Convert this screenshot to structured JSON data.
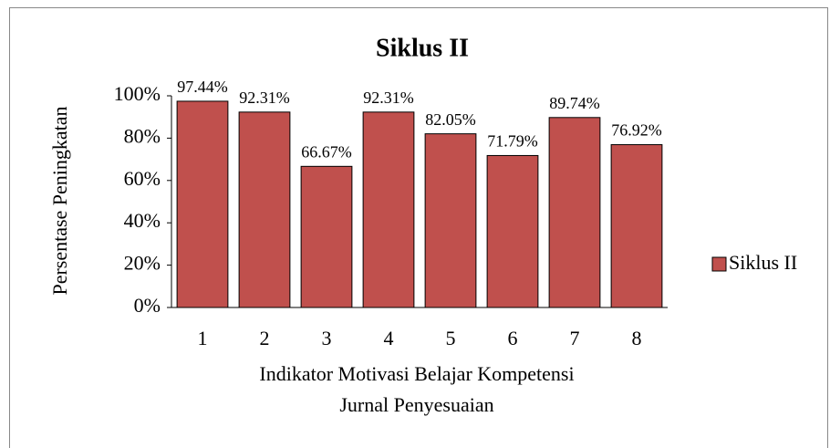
{
  "chart_data": {
    "type": "bar",
    "title": "Siklus II",
    "categories": [
      "1",
      "2",
      "3",
      "4",
      "5",
      "6",
      "7",
      "8"
    ],
    "series": [
      {
        "name": "Siklus II",
        "color": "#c0504d",
        "values": [
          97.44,
          92.31,
          66.67,
          92.31,
          82.05,
          71.79,
          89.74,
          76.92
        ],
        "value_labels": [
          "97.44%",
          "92.31%",
          "66.67%",
          "92.31%",
          "82.05%",
          "71.79%",
          "89.74%",
          "76.92%"
        ]
      }
    ],
    "ylim": [
      0,
      100
    ],
    "yticks": [
      {
        "value": 0,
        "label": "0%"
      },
      {
        "value": 20,
        "label": "20%"
      },
      {
        "value": 40,
        "label": "40%"
      },
      {
        "value": 60,
        "label": "60%"
      },
      {
        "value": 80,
        "label": "80%"
      },
      {
        "value": 100,
        "label": "100%"
      }
    ],
    "ylabel": "Persentase Peningkatan",
    "xlabel": [
      "Indikator Motivasi Belajar Kompetensi",
      "Jurnal Penyesuaian"
    ],
    "grid": false,
    "legend": "right"
  }
}
